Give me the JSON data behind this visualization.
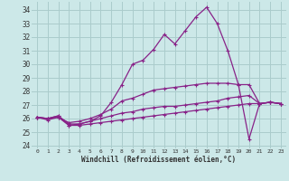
{
  "xlabel": "Windchill (Refroidissement éolien,°C)",
  "bg_color": "#cce8e8",
  "grid_color": "#aacccc",
  "line_color": "#882288",
  "xlim": [
    -0.5,
    23.5
  ],
  "ylim": [
    23.8,
    34.6
  ],
  "yticks": [
    24,
    25,
    26,
    27,
    28,
    29,
    30,
    31,
    32,
    33,
    34
  ],
  "xticks": [
    0,
    1,
    2,
    3,
    4,
    5,
    6,
    7,
    8,
    9,
    10,
    11,
    12,
    13,
    14,
    15,
    16,
    17,
    18,
    19,
    20,
    21,
    22,
    23
  ],
  "series": [
    [
      26.1,
      25.9,
      26.1,
      25.5,
      25.6,
      25.8,
      26.2,
      27.2,
      28.5,
      30.0,
      30.3,
      31.1,
      32.2,
      31.5,
      32.5,
      33.5,
      34.2,
      33.0,
      31.0,
      28.5,
      24.5,
      27.1,
      27.2,
      27.1
    ],
    [
      26.1,
      26.0,
      26.1,
      25.7,
      25.8,
      26.0,
      26.3,
      26.7,
      27.3,
      27.5,
      27.8,
      28.1,
      28.2,
      28.3,
      28.4,
      28.5,
      28.6,
      28.6,
      28.6,
      28.5,
      28.5,
      27.1,
      27.2,
      27.1
    ],
    [
      26.1,
      26.0,
      26.2,
      25.6,
      25.6,
      25.8,
      26.0,
      26.2,
      26.4,
      26.5,
      26.7,
      26.8,
      26.9,
      26.9,
      27.0,
      27.1,
      27.2,
      27.3,
      27.5,
      27.6,
      27.7,
      27.1,
      27.2,
      27.1
    ],
    [
      26.1,
      26.0,
      26.2,
      25.5,
      25.5,
      25.6,
      25.7,
      25.8,
      25.9,
      26.0,
      26.1,
      26.2,
      26.3,
      26.4,
      26.5,
      26.6,
      26.7,
      26.8,
      26.9,
      27.0,
      27.1,
      27.1,
      27.2,
      27.1
    ]
  ]
}
